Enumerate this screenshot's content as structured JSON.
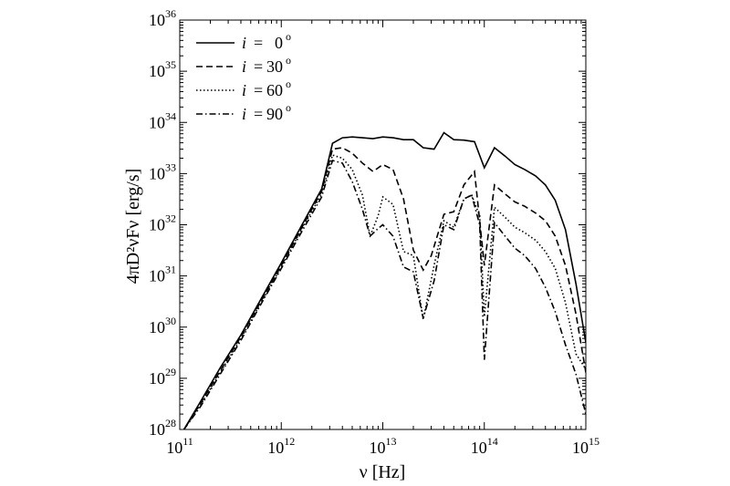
{
  "chart_data": {
    "type": "line",
    "xlabel": "ν [Hz]",
    "ylabel": "4πD²νFν [erg/s]",
    "xscale": "log",
    "yscale": "log",
    "xlim": [
      100000000000.0,
      1000000000000000.0
    ],
    "ylim": [
      1e+28,
      1e+36
    ],
    "grid": false,
    "legend_position": "top-left",
    "x_ticks": [
      {
        "base": "10",
        "exp": "11"
      },
      {
        "base": "10",
        "exp": "12"
      },
      {
        "base": "10",
        "exp": "13"
      },
      {
        "base": "10",
        "exp": "14"
      },
      {
        "base": "10",
        "exp": "15"
      }
    ],
    "y_ticks": [
      {
        "base": "10",
        "exp": "28"
      },
      {
        "base": "10",
        "exp": "29"
      },
      {
        "base": "10",
        "exp": "30"
      },
      {
        "base": "10",
        "exp": "31"
      },
      {
        "base": "10",
        "exp": "32"
      },
      {
        "base": "10",
        "exp": "33"
      },
      {
        "base": "10",
        "exp": "34"
      },
      {
        "base": "10",
        "exp": "35"
      },
      {
        "base": "10",
        "exp": "36"
      }
    ],
    "series": [
      {
        "name": "i = 0°",
        "legend_var": "i",
        "legend_eq": "=",
        "legend_num": "0",
        "legend_deg": "o",
        "style": "solid",
        "x": [
          110000000000.0,
          160000000000.0,
          250000000000.0,
          400000000000.0,
          630000000000.0,
          1000000000000.0,
          1600000000000.0,
          2500000000000.0,
          3200000000000.0,
          4000000000000.0,
          5000000000000.0,
          6300000000000.0,
          8000000000000.0,
          10000000000000.0,
          12600000000000.0,
          16000000000000.0,
          20000000000000.0,
          25000000000000.0,
          32000000000000.0,
          40000000000000.0,
          50000000000000.0,
          63000000000000.0,
          80000000000000.0,
          100000000000000.0,
          126000000000000.0,
          160000000000000.0,
          200000000000000.0,
          250000000000000.0,
          320000000000000.0,
          400000000000000.0,
          500000000000000.0,
          630000000000000.0,
          800000000000000.0,
          1000000000000000.0
        ],
        "y": [
          1e+28,
          3.5e+28,
          1.6e+29,
          7e+29,
          3.5e+30,
          1.8e+31,
          1e+32,
          5e+32,
          3.9e+33,
          5e+33,
          5.2e+33,
          5e+33,
          4.8e+33,
          5.2e+33,
          5e+33,
          4.6e+33,
          4.6e+33,
          3.2e+33,
          3e+33,
          6.3e+33,
          4.6e+33,
          4.5e+33,
          4.2e+33,
          1.3e+33,
          3.2e+33,
          2.2e+33,
          1.5e+33,
          1.2e+33,
          9e+32,
          6e+32,
          3e+32,
          8e+31,
          7e+30,
          5e+29
        ]
      },
      {
        "name": "i = 30°",
        "legend_var": "i",
        "legend_eq": "=",
        "legend_num": "30",
        "legend_deg": "o",
        "style": "dashed",
        "x": [
          110000000000.0,
          160000000000.0,
          250000000000.0,
          400000000000.0,
          630000000000.0,
          1000000000000.0,
          1600000000000.0,
          2500000000000.0,
          3200000000000.0,
          4000000000000.0,
          5000000000000.0,
          6300000000000.0,
          8000000000000.0,
          10000000000000.0,
          12600000000000.0,
          16000000000000.0,
          20000000000000.0,
          25000000000000.0,
          30000000000000.0,
          40000000000000.0,
          50000000000000.0,
          63000000000000.0,
          80000000000000.0,
          100000000000000.0,
          126000000000000.0,
          160000000000000.0,
          200000000000000.0,
          250000000000000.0,
          320000000000000.0,
          400000000000000.0,
          500000000000000.0,
          630000000000000.0,
          800000000000000.0,
          1000000000000000.0
        ],
        "y": [
          1e+28,
          3.2e+28,
          1.4e+29,
          6.5e+29,
          3.2e+30,
          1.6e+31,
          9e+31,
          4.5e+32,
          3e+33,
          3.2e+33,
          2.5e+33,
          1.6e+33,
          1.1e+33,
          1.5e+33,
          1.2e+33,
          3.2e+32,
          3.2e+31,
          1.3e+31,
          2.5e+31,
          1.6e+32,
          1.8e+32,
          6e+32,
          1.1e+33,
          1.6e+31,
          6e+32,
          4e+32,
          2.8e+32,
          2.3e+32,
          1.7e+32,
          1.2e+32,
          6e+31,
          1.6e+31,
          1.8e+30,
          1.3e+29
        ]
      },
      {
        "name": "i = 60°",
        "legend_var": "i",
        "legend_eq": "=",
        "legend_num": "60",
        "legend_deg": "o",
        "style": "dotted",
        "x": [
          110000000000.0,
          160000000000.0,
          250000000000.0,
          400000000000.0,
          630000000000.0,
          1000000000000.0,
          1600000000000.0,
          2500000000000.0,
          3200000000000.0,
          4000000000000.0,
          5000000000000.0,
          6300000000000.0,
          7500000000000.0,
          9000000000000.0,
          10000000000000.0,
          12600000000000.0,
          16000000000000.0,
          20000000000000.0,
          25000000000000.0,
          32000000000000.0,
          40000000000000.0,
          50000000000000.0,
          63000000000000.0,
          75000000000000.0,
          90000000000000.0,
          100000000000000.0,
          126000000000000.0,
          160000000000000.0,
          200000000000000.0,
          250000000000000.0,
          320000000000000.0,
          400000000000000.0,
          500000000000000.0,
          630000000000000.0,
          800000000000000.0,
          1000000000000000.0
        ],
        "y": [
          1e+28,
          3e+28,
          1.3e+29,
          6e+29,
          3e+30,
          1.5e+31,
          8.5e+31,
          4e+32,
          2.3e+33,
          2e+33,
          1.2e+33,
          3.8e+32,
          6e+31,
          1.5e+32,
          3.5e+32,
          2.5e+32,
          3e+31,
          2.5e+31,
          1.4e+30,
          1.6e+31,
          1.2e+32,
          9e+31,
          3.2e+32,
          3.8e+32,
          1.5e+32,
          1.6e+30,
          2.2e+32,
          1.4e+32,
          9e+31,
          7e+31,
          5e+31,
          3e+31,
          1.4e+31,
          3e+30,
          3e+29,
          1.5e+29
        ]
      },
      {
        "name": "i = 90°",
        "legend_var": "i",
        "legend_eq": "=",
        "legend_num": "90",
        "legend_deg": "o",
        "style": "dashdot",
        "x": [
          110000000000.0,
          160000000000.0,
          250000000000.0,
          400000000000.0,
          630000000000.0,
          1000000000000.0,
          1600000000000.0,
          2500000000000.0,
          3200000000000.0,
          4000000000000.0,
          5000000000000.0,
          6300000000000.0,
          7500000000000.0,
          9000000000000.0,
          10000000000000.0,
          12600000000000.0,
          16000000000000.0,
          20000000000000.0,
          25000000000000.0,
          32000000000000.0,
          40000000000000.0,
          50000000000000.0,
          63000000000000.0,
          75000000000000.0,
          90000000000000.0,
          100000000000000.0,
          126000000000000.0,
          160000000000000.0,
          200000000000000.0,
          250000000000000.0,
          320000000000000.0,
          400000000000000.0,
          500000000000000.0,
          630000000000000.0,
          800000000000000.0,
          1000000000000000.0
        ],
        "y": [
          1e+28,
          2.8e+28,
          1.2e+29,
          5.5e+29,
          2.8e+30,
          1.4e+31,
          7.5e+31,
          3.5e+32,
          1.8e+33,
          1.6e+33,
          7e+32,
          2e+32,
          6e+31,
          8.5e+31,
          1e+32,
          6e+31,
          1.5e+31,
          1.2e+31,
          1.5e+30,
          8e+30,
          1e+32,
          8e+31,
          3.2e+32,
          3.8e+32,
          1e+32,
          2.3e+29,
          1.1e+32,
          6e+31,
          3.5e+31,
          2.5e+31,
          1.4e+31,
          6e+30,
          2e+30,
          4.5e+29,
          1.2e+29,
          2e+28
        ]
      }
    ]
  }
}
